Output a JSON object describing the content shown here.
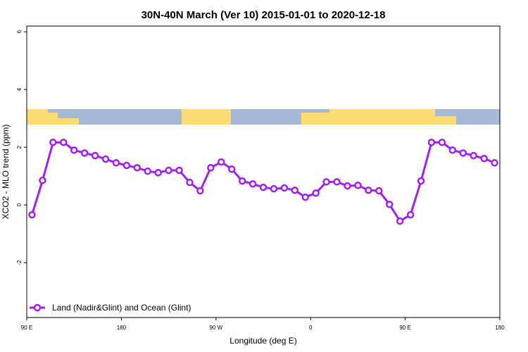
{
  "chart_data": {
    "type": "line",
    "title": "30N-40N March (Ver 10)   2015-01-01 to 2020-12-18",
    "x_label": "Longitude (deg E)",
    "y_label": "XCO2 - MLO trend (ppm)",
    "x": [
      95,
      105,
      115,
      125,
      135,
      145,
      155,
      165,
      175,
      185,
      195,
      205,
      215,
      225,
      235,
      245,
      255,
      265,
      275,
      285,
      295,
      305,
      315,
      325,
      335,
      345,
      355,
      365,
      375,
      385,
      395,
      405,
      415,
      425,
      435,
      445,
      455,
      465,
      475,
      485,
      495,
      505,
      515,
      525,
      535
    ],
    "series": [
      {
        "name": "Land (Nadir&Glint) and Ocean (Glint)",
        "color": "#a020f0",
        "values": [
          -0.34,
          0.85,
          2.17,
          2.17,
          1.9,
          1.8,
          1.71,
          1.59,
          1.46,
          1.37,
          1.29,
          1.17,
          1.12,
          1.2,
          1.2,
          0.78,
          0.49,
          1.29,
          1.49,
          1.24,
          0.83,
          0.73,
          0.61,
          0.56,
          0.59,
          0.51,
          0.27,
          0.41,
          0.8,
          0.8,
          0.66,
          0.68,
          0.51,
          0.49,
          0.02,
          -0.56,
          -0.34,
          0.83,
          2.17,
          2.17,
          1.9,
          1.8,
          1.71,
          1.61,
          1.46
        ]
      }
    ],
    "xlim": [
      90,
      540
    ],
    "xticks": [
      {
        "value": 90,
        "label": "90 E"
      },
      180,
      {
        "value": 270,
        "label": "90 W"
      },
      {
        "value": 360,
        "label": "0"
      },
      {
        "value": 450,
        "label": "90 E"
      },
      {
        "value": 540,
        "label": "180"
      }
    ],
    "ylim": [
      -3.9,
      6.2
    ],
    "yticks": [
      -2,
      0,
      2,
      4,
      6
    ],
    "legend": "bottom-left"
  }
}
